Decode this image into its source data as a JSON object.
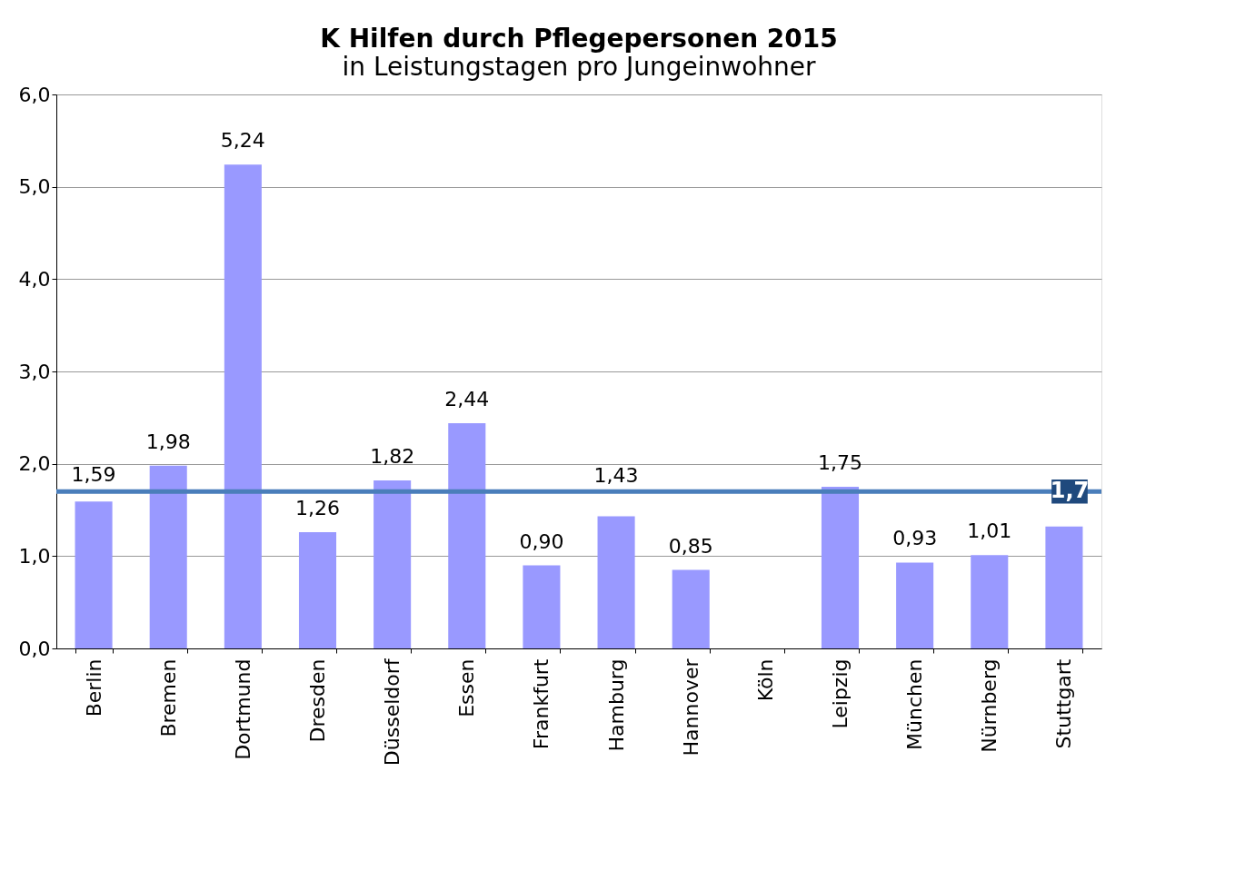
{
  "chart_data": {
    "type": "bar",
    "title": "K   Hilfen durch Pflegepersonen 2015",
    "subtitle": "in Leistungstagen pro Jungeinwohner",
    "categories": [
      "Berlin",
      "Bremen",
      "Dortmund",
      "Dresden",
      "Düsseldorf",
      "Essen",
      "Frankfurt",
      "Hamburg",
      "Hannover",
      "Köln",
      "Leipzig",
      "München",
      "Nürnberg",
      "Stuttgart"
    ],
    "values": [
      1.59,
      1.98,
      5.24,
      1.26,
      1.82,
      2.44,
      0.9,
      1.43,
      0.85,
      null,
      1.75,
      0.93,
      1.01,
      1.32
    ],
    "value_labels": [
      "1,59",
      "1,98",
      "5,24",
      "1,26",
      "1,82",
      "2,44",
      "0,90",
      "1,43",
      "0,85",
      null,
      "1,75",
      "0,93",
      "1,01",
      null
    ],
    "color": "#9999ff",
    "ylim": [
      0,
      6
    ],
    "yticks": [
      {
        "value": 0,
        "label": "0,0"
      },
      {
        "value": 1,
        "label": "1,0"
      },
      {
        "value": 2,
        "label": "2,0"
      },
      {
        "value": 3,
        "label": "3,0"
      },
      {
        "value": 4,
        "label": "4,0"
      },
      {
        "value": 5,
        "label": "5,0"
      },
      {
        "value": 6,
        "label": "6,0"
      }
    ],
    "ref_lines": [
      {
        "axis": "y",
        "value": 1.7,
        "label": "1,7",
        "color": "#4a7ebb"
      }
    ],
    "grid": "y"
  }
}
